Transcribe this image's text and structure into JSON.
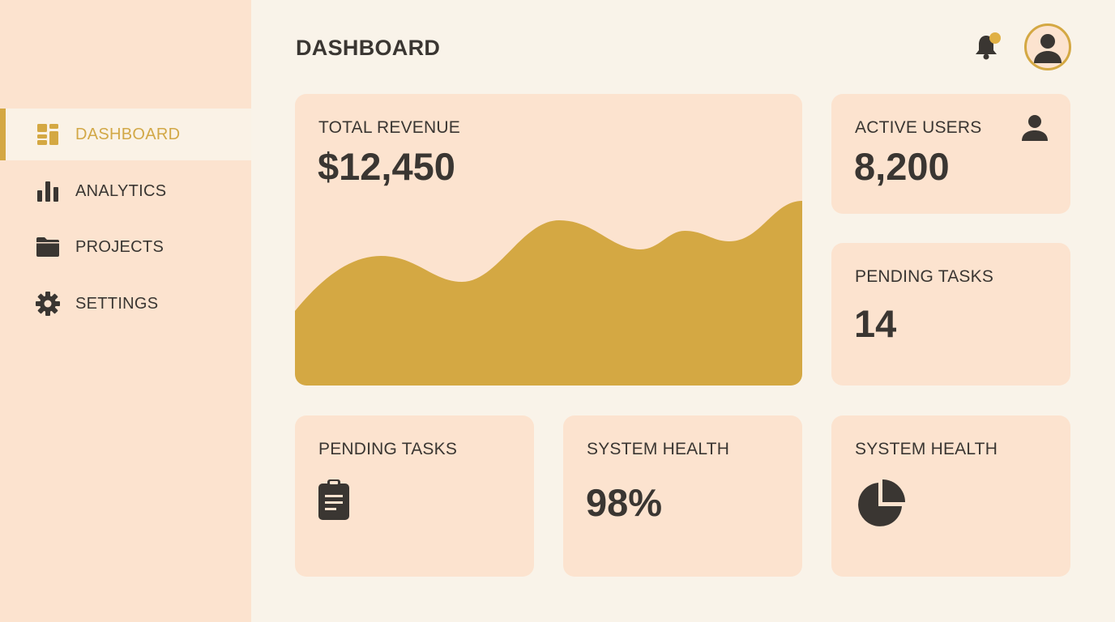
{
  "header": {
    "title": "DASHBOARD",
    "notification_dot_color": "#e0b044"
  },
  "sidebar": {
    "items": [
      {
        "label": "DASHBOARD",
        "icon": "dashboard-icon",
        "active": true
      },
      {
        "label": "ANALYTICS",
        "icon": "bar-chart-icon"
      },
      {
        "label": "PROJECTS",
        "icon": "folder-icon"
      },
      {
        "label": "SETTINGS",
        "icon": "gear-icon"
      }
    ]
  },
  "cards": {
    "revenue": {
      "label": "TOTAL REVENUE",
      "value": "$12,450"
    },
    "active_users": {
      "label": "ACTIVE USERS",
      "value": "8,200"
    },
    "pending_tasks": {
      "label": "PENDING TASKS",
      "value": "14"
    },
    "pending_tasks_2": {
      "label": "PENDING TASKS",
      "icon": "clipboard-icon"
    },
    "system_health": {
      "label": "SYSTEM HEALTH",
      "value": "98%"
    },
    "system_health_2": {
      "label": "SYSTEM HEALTH",
      "icon": "pie-chart-icon"
    }
  },
  "colors": {
    "accent": "#d4a843",
    "card": "#fce3cf",
    "text": "#3a3632"
  }
}
